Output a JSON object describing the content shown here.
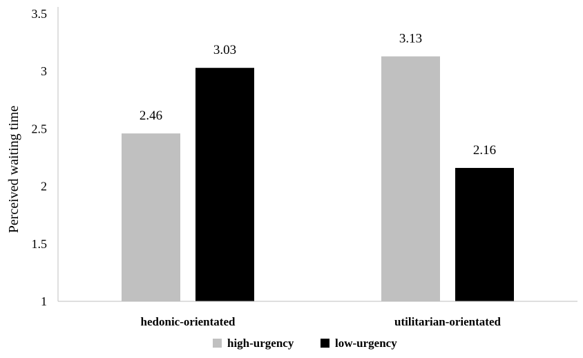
{
  "chart_data": {
    "type": "bar",
    "title": "",
    "xlabel": "",
    "ylabel": "Perceived waiting time",
    "ylim": [
      1,
      3.5
    ],
    "yticks": [
      "1",
      "1.5",
      "2",
      "2.5",
      "3",
      "3.5"
    ],
    "categories": [
      "hedonic-orientated",
      "utilitarian-orientated"
    ],
    "series": [
      {
        "name": "high-urgency",
        "color": "#c0c0c0",
        "values": [
          2.46,
          3.13
        ],
        "labels": [
          "2.46",
          "3.13"
        ]
      },
      {
        "name": "low-urgency",
        "color": "#000000",
        "values": [
          3.03,
          2.16
        ],
        "labels": [
          "3.03",
          "2.16"
        ]
      }
    ],
    "grid": false,
    "legend_position": "bottom"
  }
}
